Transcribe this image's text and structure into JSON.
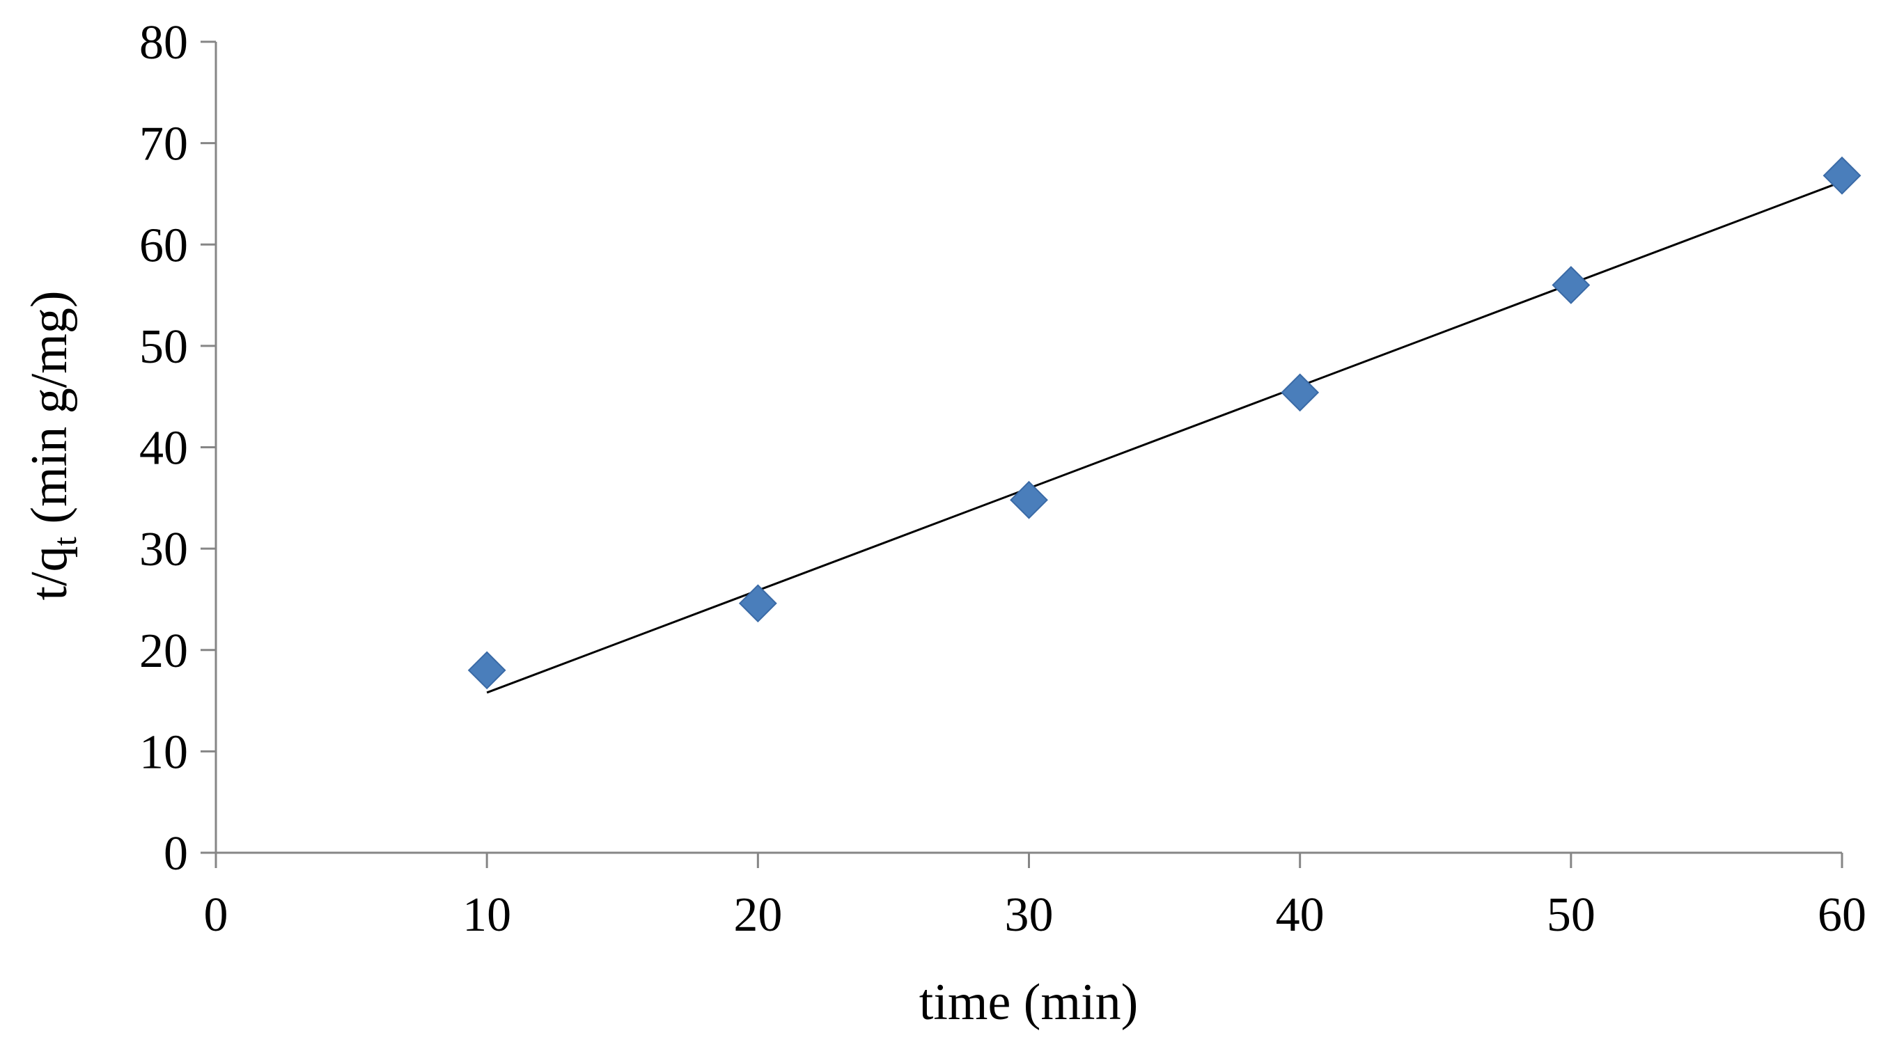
{
  "chart_data": {
    "type": "scatter",
    "title": "",
    "xlabel": "time (min)",
    "ylabel": {
      "prefix": "t/q",
      "subscript": "t",
      "suffix": " (min g/mg)"
    },
    "xlim": [
      0,
      60
    ],
    "ylim": [
      0,
      80
    ],
    "xticks": [
      0,
      10,
      20,
      30,
      40,
      50,
      60
    ],
    "yticks": [
      0,
      10,
      20,
      30,
      40,
      50,
      60,
      70,
      80
    ],
    "grid": false,
    "legend": "none",
    "series": [
      {
        "marker": "diamond",
        "color": "#4a7ebb",
        "points": [
          {
            "x": 10,
            "y": 18.0
          },
          {
            "x": 20,
            "y": 24.6
          },
          {
            "x": 30,
            "y": 34.8
          },
          {
            "x": 40,
            "y": 45.4
          },
          {
            "x": 50,
            "y": 56.0
          },
          {
            "x": 60,
            "y": 66.8
          }
        ]
      }
    ],
    "trendline": {
      "type": "linear",
      "color": "#000000",
      "from": {
        "x": 10,
        "y": 15.8
      },
      "to": {
        "x": 60,
        "y": 66.2
      }
    }
  }
}
